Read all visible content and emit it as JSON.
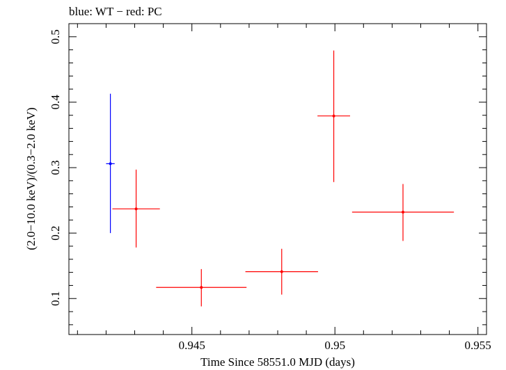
{
  "chart_data": {
    "type": "scatter",
    "title": "blue: WT − red: PC",
    "xlabel": "Time Since 58551.0 MJD (days)",
    "ylabel": "(2.0−10.0 keV)/(0.3−2.0 keV)",
    "xlim": [
      0.9407,
      0.9553
    ],
    "ylim": [
      0.045,
      0.52
    ],
    "xticks": [
      0.945,
      0.95,
      0.955
    ],
    "xtick_labels": [
      "0.945",
      "0.95",
      "0.955"
    ],
    "yticks": [
      0.1,
      0.2,
      0.3,
      0.4,
      0.5
    ],
    "ytick_labels": [
      "0.1",
      "0.2",
      "0.3",
      "0.4",
      "0.5"
    ],
    "series": [
      {
        "name": "WT",
        "color": "#0000ff",
        "points": [
          {
            "x": 0.94215,
            "xerr": 0.00015,
            "y": 0.306,
            "yerr_low": 0.106,
            "yerr_high": 0.107
          }
        ]
      },
      {
        "name": "PC",
        "color": "#ff0000",
        "points": [
          {
            "x": 0.94305,
            "xerr": 0.00083,
            "y": 0.237,
            "yerr_low": 0.059,
            "yerr_high": 0.06
          },
          {
            "x": 0.94533,
            "xerr": 0.00158,
            "y": 0.117,
            "yerr_low": 0.029,
            "yerr_high": 0.028
          },
          {
            "x": 0.94814,
            "xerr": 0.00127,
            "y": 0.141,
            "yerr_low": 0.035,
            "yerr_high": 0.035
          },
          {
            "x": 0.94996,
            "xerr": 0.00057,
            "y": 0.379,
            "yerr_low": 0.101,
            "yerr_high": 0.1
          },
          {
            "x": 0.95238,
            "xerr": 0.00178,
            "y": 0.232,
            "yerr_low": 0.044,
            "yerr_high": 0.043
          }
        ]
      }
    ]
  }
}
